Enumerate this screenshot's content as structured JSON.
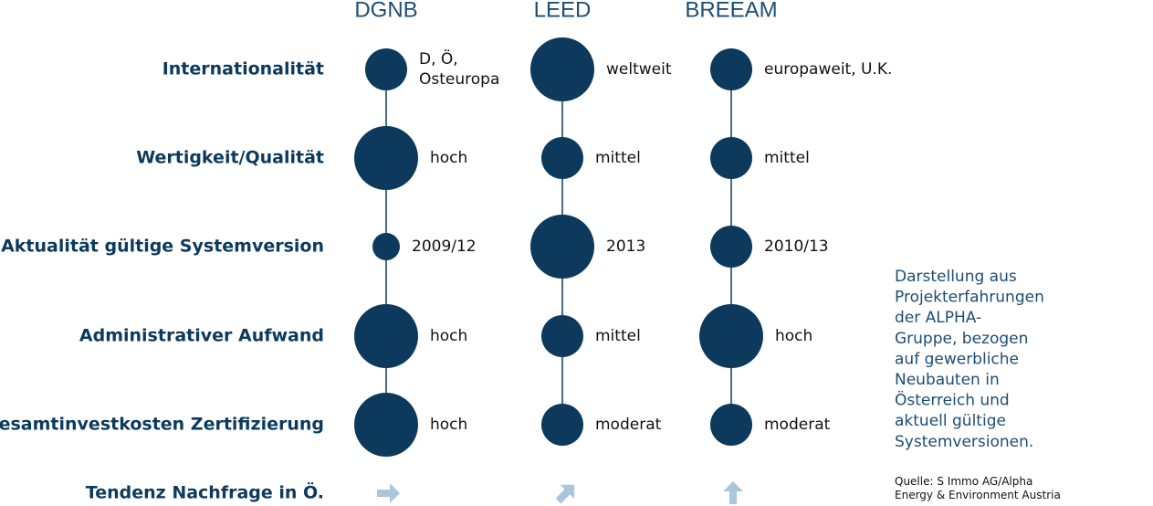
{
  "columns": [
    "DGNB",
    "LEED",
    "BREEAM"
  ],
  "rows": [
    {
      "label": "Internationalität",
      "cells": [
        [
          "D, Ö,",
          "Osteuropa"
        ],
        [
          "weltweit"
        ],
        [
          "europaweit, U.K."
        ]
      ]
    },
    {
      "label": "Wertigkeit/Qualität",
      "cells": [
        [
          "hoch"
        ],
        [
          "mittel"
        ],
        [
          "mittel"
        ]
      ]
    },
    {
      "label": "Aktualität gültige Systemversion",
      "cells": [
        [
          "2009/12"
        ],
        [
          "2013"
        ],
        [
          "2010/13"
        ]
      ]
    },
    {
      "label": "Administrativer Aufwand",
      "cells": [
        [
          "hoch"
        ],
        [
          "mittel"
        ],
        [
          "hoch"
        ]
      ]
    },
    {
      "label": "Gesamtinvestkosten Zertifizierung",
      "cells": [
        [
          "hoch"
        ],
        [
          "moderat"
        ],
        [
          "moderat"
        ]
      ]
    }
  ],
  "trend_label": "Tendenz Nachfrage in Ö.",
  "note": [
    "Darstellung aus",
    "Projekterfahrungen",
    "der ALPHA-",
    "Gruppe, bezogen",
    "auf gewerbliche",
    "Neubauten in",
    "Österreich und",
    "aktuell gültige",
    "Systemversionen."
  ],
  "source": [
    "Quelle: S Immo AG/Alpha",
    "Energy & Environment Austria"
  ]
}
